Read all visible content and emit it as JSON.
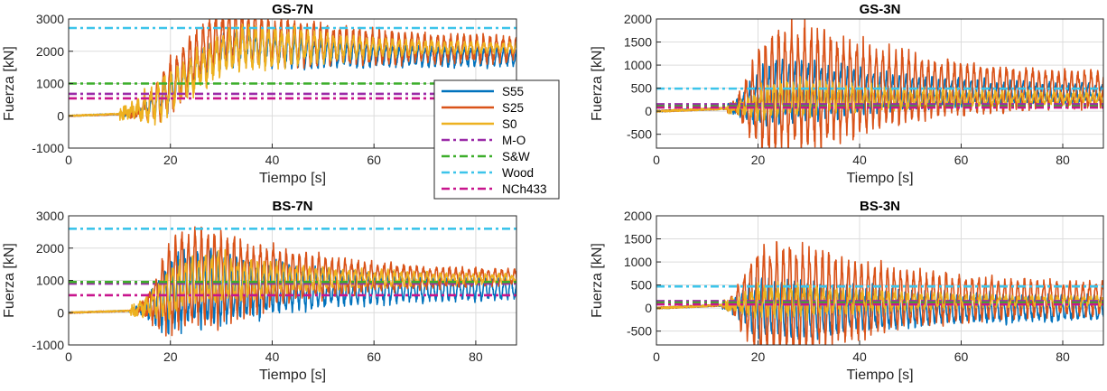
{
  "chart_data": [
    {
      "type": "line",
      "title": "GS-7N",
      "xlabel": "Tiempo [s]",
      "ylabel": "Fuerza [kN]",
      "xlim": [
        0,
        88
      ],
      "ylim": [
        -1000,
        3000
      ],
      "xticks": [
        0,
        20,
        40,
        60,
        80
      ],
      "yticks": [
        -1000,
        0,
        1000,
        2000,
        3000
      ],
      "x_tick_labels": [
        "0",
        "20",
        "40",
        "60",
        "80"
      ],
      "y_tick_labels": [
        "-1000",
        "0",
        "1000",
        "2000",
        "3000"
      ],
      "grid": true,
      "legend": "right",
      "reference_lines": [
        {
          "name": "M-O",
          "value": 680
        },
        {
          "name": "S&W",
          "value": 1000
        },
        {
          "name": "Wood",
          "value": 2720
        },
        {
          "name": "NCh433",
          "value": 540
        }
      ],
      "series": [
        {
          "name": "S55",
          "onset": 11,
          "ramp_end": 34,
          "final": 1800,
          "overshoot": 350,
          "osc_peak": 450,
          "osc_final": 220,
          "noise": 120,
          "noise_final": 60,
          "seed": 11
        },
        {
          "name": "S25",
          "onset": 12,
          "ramp_end": 32,
          "final": 2050,
          "overshoot": 400,
          "osc_peak": 700,
          "osc_final": 300,
          "noise": 160,
          "noise_final": 100,
          "seed": 22
        },
        {
          "name": "S0",
          "onset": 10,
          "ramp_end": 36,
          "final": 2100,
          "overshoot": 50,
          "osc_peak": 500,
          "osc_final": 60,
          "noise": 220,
          "noise_final": 40,
          "seed": 33
        }
      ]
    },
    {
      "type": "line",
      "title": "GS-3N",
      "xlabel": "Tiempo [s]",
      "ylabel": "Fuerza [kN]",
      "xlim": [
        0,
        88
      ],
      "ylim": [
        -800,
        2000
      ],
      "xticks": [
        0,
        20,
        40,
        60,
        80
      ],
      "yticks": [
        -500,
        0,
        500,
        1000,
        1500,
        2000
      ],
      "x_tick_labels": [
        "0",
        "20",
        "40",
        "60",
        "80"
      ],
      "y_tick_labels": [
        "-500",
        "0",
        "500",
        "1000",
        "1500",
        "2000"
      ],
      "grid": true,
      "reference_lines": [
        {
          "name": "M-O",
          "value": 150
        },
        {
          "name": "S&W",
          "value": 110
        },
        {
          "name": "Wood",
          "value": 490
        },
        {
          "name": "NCh433",
          "value": 80
        }
      ],
      "series": [
        {
          "name": "S55",
          "onset": 14,
          "ramp_end": 26,
          "final": 400,
          "overshoot": 50,
          "osc_peak": 550,
          "osc_final": 120,
          "noise": 120,
          "noise_final": 60,
          "seed": 44
        },
        {
          "name": "S25",
          "onset": 14,
          "ramp_end": 28,
          "final": 480,
          "overshoot": 50,
          "osc_peak": 1150,
          "osc_final": 250,
          "noise": 100,
          "noise_final": 60,
          "seed": 55
        },
        {
          "name": "S0",
          "onset": 14,
          "ramp_end": 26,
          "final": 280,
          "overshoot": 0,
          "osc_peak": 300,
          "osc_final": 80,
          "noise": 120,
          "noise_final": 40,
          "seed": 66
        }
      ]
    },
    {
      "type": "line",
      "title": "BS-7N",
      "xlabel": "Tiempo [s]",
      "ylabel": "Fuerza [kN]",
      "xlim": [
        0,
        88
      ],
      "ylim": [
        -1000,
        3000
      ],
      "xticks": [
        0,
        20,
        40,
        60,
        80
      ],
      "yticks": [
        -1000,
        0,
        1000,
        2000,
        3000
      ],
      "x_tick_labels": [
        "0",
        "20",
        "40",
        "60",
        "80"
      ],
      "y_tick_labels": [
        "-1000",
        "0",
        "1000",
        "2000",
        "3000"
      ],
      "grid": true,
      "reference_lines": [
        {
          "name": "M-O",
          "value": 900
        },
        {
          "name": "S&W",
          "value": 950
        },
        {
          "name": "Wood",
          "value": 2600
        },
        {
          "name": "NCh433",
          "value": 540
        }
      ],
      "series": [
        {
          "name": "S55",
          "onset": 13,
          "ramp_end": 24,
          "final": 750,
          "overshoot": 0,
          "osc_peak": 1000,
          "osc_final": 250,
          "noise": 150,
          "noise_final": 60,
          "seed": 77
        },
        {
          "name": "S25",
          "onset": 13,
          "ramp_end": 24,
          "final": 1100,
          "overshoot": 0,
          "osc_peak": 1300,
          "osc_final": 120,
          "noise": 150,
          "noise_final": 60,
          "seed": 88
        },
        {
          "name": "S0",
          "onset": 12,
          "ramp_end": 26,
          "final": 1050,
          "overshoot": 0,
          "osc_peak": 600,
          "osc_final": 70,
          "noise": 200,
          "noise_final": 50,
          "seed": 99
        }
      ]
    },
    {
      "type": "line",
      "title": "BS-3N",
      "xlabel": "Tiempo [s]",
      "ylabel": "Fuerza [kN]",
      "xlim": [
        0,
        88
      ],
      "ylim": [
        -800,
        2000
      ],
      "xticks": [
        0,
        20,
        40,
        60,
        80
      ],
      "yticks": [
        -500,
        0,
        500,
        1000,
        1500,
        2000
      ],
      "x_tick_labels": [
        "0",
        "20",
        "40",
        "60",
        "80"
      ],
      "y_tick_labels": [
        "-500",
        "0",
        "500",
        "1000",
        "1500",
        "2000"
      ],
      "grid": true,
      "reference_lines": [
        {
          "name": "M-O",
          "value": 150
        },
        {
          "name": "S&W",
          "value": 120
        },
        {
          "name": "Wood",
          "value": 470
        },
        {
          "name": "NCh433",
          "value": 80
        }
      ],
      "series": [
        {
          "name": "S55",
          "onset": 13,
          "ramp_end": 24,
          "final": 0,
          "overshoot": 0,
          "osc_peak": 550,
          "osc_final": 200,
          "noise": 100,
          "noise_final": 50,
          "seed": 111
        },
        {
          "name": "S25",
          "onset": 13,
          "ramp_end": 24,
          "final": 200,
          "overshoot": 0,
          "osc_peak": 1050,
          "osc_final": 250,
          "noise": 80,
          "noise_final": 50,
          "seed": 122
        },
        {
          "name": "S0",
          "onset": 13,
          "ramp_end": 24,
          "final": 150,
          "overshoot": 0,
          "osc_peak": 280,
          "osc_final": 60,
          "noise": 120,
          "noise_final": 40,
          "seed": 133
        }
      ]
    }
  ],
  "legend": {
    "entries": [
      "S55",
      "S25",
      "S0",
      "M-O",
      "S&W",
      "Wood",
      "NCh433"
    ]
  },
  "colors": {
    "S55": "#0072BD",
    "S25": "#D95319",
    "S0": "#EDB120",
    "M-O": "#9B2BA8",
    "S&W": "#3DAE2B",
    "Wood": "#3CC4EA",
    "NCh433": "#C8158D"
  }
}
